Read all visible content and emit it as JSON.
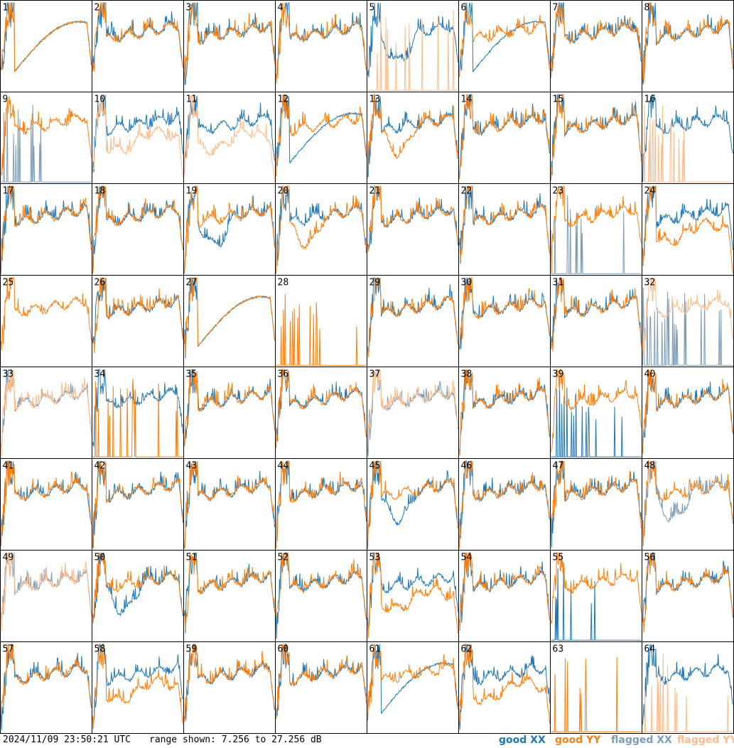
{
  "footer": {
    "timestamp": "2024/11/09 23:50:21 UTC",
    "range_text": "range shown: 7.256 to 27.256 dB"
  },
  "legend": [
    {
      "key": "good_xx",
      "label": "good XX",
      "color": "#1f77b4"
    },
    {
      "key": "good_yy",
      "label": "good YY",
      "color": "#ff7f0e"
    },
    {
      "key": "flagged_xx",
      "label": "flagged XX",
      "color": "#7f9cb5"
    },
    {
      "key": "flagged_yy",
      "label": "flagged YY",
      "color": "#ffbb8a"
    }
  ],
  "chart_data": {
    "type": "line",
    "grid": {
      "rows": 8,
      "cols": 8
    },
    "ylim_db": [
      7.256,
      27.256
    ],
    "x_tick_labels": false,
    "y_tick_labels": false,
    "tiles": [
      {
        "id": 1,
        "xx": "good",
        "yy": "good",
        "shape_xx": "shoulder",
        "shape_yy": "shoulder"
      },
      {
        "id": 2,
        "xx": "good",
        "yy": "good",
        "shape_xx": "normal",
        "shape_yy": "normal"
      },
      {
        "id": 3,
        "xx": "good",
        "yy": "good",
        "shape_xx": "normal",
        "shape_yy": "normal"
      },
      {
        "id": 4,
        "xx": "good",
        "yy": "good",
        "shape_xx": "normal",
        "shape_yy": "normal"
      },
      {
        "id": 5,
        "xx": "good",
        "yy": "flagged",
        "shape_xx": "dip",
        "shape_yy": "spikes"
      },
      {
        "id": 6,
        "xx": "good",
        "yy": "good",
        "shape_xx": "shoulder",
        "shape_yy": "normal"
      },
      {
        "id": 7,
        "xx": "good",
        "yy": "good",
        "shape_xx": "normal",
        "shape_yy": "normal"
      },
      {
        "id": 8,
        "xx": "good",
        "yy": "good",
        "shape_xx": "normal",
        "shape_yy": "normal"
      },
      {
        "id": 9,
        "xx": "flagged",
        "yy": "good",
        "shape_xx": "spikes",
        "shape_yy": "normal"
      },
      {
        "id": 10,
        "xx": "good",
        "yy": "flagged",
        "shape_xx": "normal",
        "shape_yy": "low"
      },
      {
        "id": 11,
        "xx": "good",
        "yy": "flagged",
        "shape_xx": "normal",
        "shape_yy": "low"
      },
      {
        "id": 12,
        "xx": "good",
        "yy": "good",
        "shape_xx": "shoulder",
        "shape_yy": "normal"
      },
      {
        "id": 13,
        "xx": "good",
        "yy": "good",
        "shape_xx": "normal",
        "shape_yy": "dip"
      },
      {
        "id": 14,
        "xx": "good",
        "yy": "good",
        "shape_xx": "normal",
        "shape_yy": "normal"
      },
      {
        "id": 15,
        "xx": "good",
        "yy": "good",
        "shape_xx": "normal",
        "shape_yy": "normal"
      },
      {
        "id": 16,
        "xx": "good",
        "yy": "flagged",
        "shape_xx": "normal",
        "shape_yy": "spikes"
      },
      {
        "id": 17,
        "xx": "good",
        "yy": "good",
        "shape_xx": "normal",
        "shape_yy": "normal"
      },
      {
        "id": 18,
        "xx": "good",
        "yy": "good",
        "shape_xx": "normal",
        "shape_yy": "normal"
      },
      {
        "id": 19,
        "xx": "good",
        "yy": "good",
        "shape_xx": "dip",
        "shape_yy": "normal"
      },
      {
        "id": 20,
        "xx": "good",
        "yy": "good",
        "shape_xx": "normal",
        "shape_yy": "dip"
      },
      {
        "id": 21,
        "xx": "good",
        "yy": "good",
        "shape_xx": "normal",
        "shape_yy": "normal"
      },
      {
        "id": 22,
        "xx": "good",
        "yy": "good",
        "shape_xx": "normal",
        "shape_yy": "normal"
      },
      {
        "id": 23,
        "xx": "flagged",
        "yy": "good",
        "shape_xx": "spikes",
        "shape_yy": "normal"
      },
      {
        "id": 24,
        "xx": "good",
        "yy": "good",
        "shape_xx": "normal",
        "shape_yy": "low"
      },
      {
        "id": 25,
        "xx": "none",
        "yy": "good",
        "shape_xx": "none",
        "shape_yy": "normal"
      },
      {
        "id": 26,
        "xx": "good",
        "yy": "good",
        "shape_xx": "normal",
        "shape_yy": "normal"
      },
      {
        "id": 27,
        "xx": "good",
        "yy": "good",
        "shape_xx": "shoulder",
        "shape_yy": "shoulder"
      },
      {
        "id": 28,
        "xx": "none",
        "yy": "good",
        "shape_xx": "none",
        "shape_yy": "spikes"
      },
      {
        "id": 29,
        "xx": "good",
        "yy": "good",
        "shape_xx": "normal",
        "shape_yy": "normal"
      },
      {
        "id": 30,
        "xx": "good",
        "yy": "good",
        "shape_xx": "normal",
        "shape_yy": "normal"
      },
      {
        "id": 31,
        "xx": "good",
        "yy": "good",
        "shape_xx": "normal",
        "shape_yy": "normal"
      },
      {
        "id": 32,
        "xx": "flagged",
        "yy": "flagged",
        "shape_xx": "spikes",
        "shape_yy": "normal"
      },
      {
        "id": 33,
        "xx": "flagged",
        "yy": "flagged",
        "shape_xx": "normal",
        "shape_yy": "normal"
      },
      {
        "id": 34,
        "xx": "good",
        "yy": "good",
        "shape_xx": "normal",
        "shape_yy": "spikes"
      },
      {
        "id": 35,
        "xx": "good",
        "yy": "good",
        "shape_xx": "normal",
        "shape_yy": "normal"
      },
      {
        "id": 36,
        "xx": "good",
        "yy": "good",
        "shape_xx": "normal",
        "shape_yy": "normal"
      },
      {
        "id": 37,
        "xx": "flagged",
        "yy": "flagged",
        "shape_xx": "normal",
        "shape_yy": "normal"
      },
      {
        "id": 38,
        "xx": "good",
        "yy": "good",
        "shape_xx": "normal",
        "shape_yy": "normal"
      },
      {
        "id": 39,
        "xx": "good",
        "yy": "good",
        "shape_xx": "spikes",
        "shape_yy": "normal"
      },
      {
        "id": 40,
        "xx": "good",
        "yy": "good",
        "shape_xx": "normal",
        "shape_yy": "normal"
      },
      {
        "id": 41,
        "xx": "good",
        "yy": "good",
        "shape_xx": "normal",
        "shape_yy": "normal"
      },
      {
        "id": 42,
        "xx": "good",
        "yy": "good",
        "shape_xx": "normal",
        "shape_yy": "normal"
      },
      {
        "id": 43,
        "xx": "good",
        "yy": "good",
        "shape_xx": "normal",
        "shape_yy": "normal"
      },
      {
        "id": 44,
        "xx": "good",
        "yy": "good",
        "shape_xx": "normal",
        "shape_yy": "normal"
      },
      {
        "id": 45,
        "xx": "good",
        "yy": "good",
        "shape_xx": "dip",
        "shape_yy": "normal"
      },
      {
        "id": 46,
        "xx": "good",
        "yy": "good",
        "shape_xx": "normal",
        "shape_yy": "normal"
      },
      {
        "id": 47,
        "xx": "good",
        "yy": "good",
        "shape_xx": "normal",
        "shape_yy": "normal"
      },
      {
        "id": 48,
        "xx": "flagged",
        "yy": "good",
        "shape_xx": "dip",
        "shape_yy": "normal"
      },
      {
        "id": 49,
        "xx": "flagged",
        "yy": "flagged",
        "shape_xx": "normal",
        "shape_yy": "normal"
      },
      {
        "id": 50,
        "xx": "good",
        "yy": "good",
        "shape_xx": "dip",
        "shape_yy": "normal"
      },
      {
        "id": 51,
        "xx": "good",
        "yy": "good",
        "shape_xx": "normal",
        "shape_yy": "normal"
      },
      {
        "id": 52,
        "xx": "good",
        "yy": "good",
        "shape_xx": "normal",
        "shape_yy": "normal"
      },
      {
        "id": 53,
        "xx": "good",
        "yy": "good",
        "shape_xx": "normal",
        "shape_yy": "low"
      },
      {
        "id": 54,
        "xx": "good",
        "yy": "good",
        "shape_xx": "normal",
        "shape_yy": "normal"
      },
      {
        "id": 55,
        "xx": "good",
        "yy": "good",
        "shape_xx": "spikes",
        "shape_yy": "normal"
      },
      {
        "id": 56,
        "xx": "good",
        "yy": "good",
        "shape_xx": "normal",
        "shape_yy": "normal"
      },
      {
        "id": 57,
        "xx": "good",
        "yy": "good",
        "shape_xx": "normal",
        "shape_yy": "normal"
      },
      {
        "id": 58,
        "xx": "good",
        "yy": "good",
        "shape_xx": "normal",
        "shape_yy": "low"
      },
      {
        "id": 59,
        "xx": "good",
        "yy": "good",
        "shape_xx": "normal",
        "shape_yy": "normal"
      },
      {
        "id": 60,
        "xx": "good",
        "yy": "good",
        "shape_xx": "normal",
        "shape_yy": "normal"
      },
      {
        "id": 61,
        "xx": "good",
        "yy": "good",
        "shape_xx": "shoulder",
        "shape_yy": "normal"
      },
      {
        "id": 62,
        "xx": "good",
        "yy": "good",
        "shape_xx": "normal",
        "shape_yy": "low"
      },
      {
        "id": 63,
        "xx": "none",
        "yy": "good",
        "shape_xx": "none",
        "shape_yy": "spikes"
      },
      {
        "id": 64,
        "xx": "good",
        "yy": "flagged",
        "shape_xx": "normal",
        "shape_yy": "spikes"
      }
    ]
  }
}
